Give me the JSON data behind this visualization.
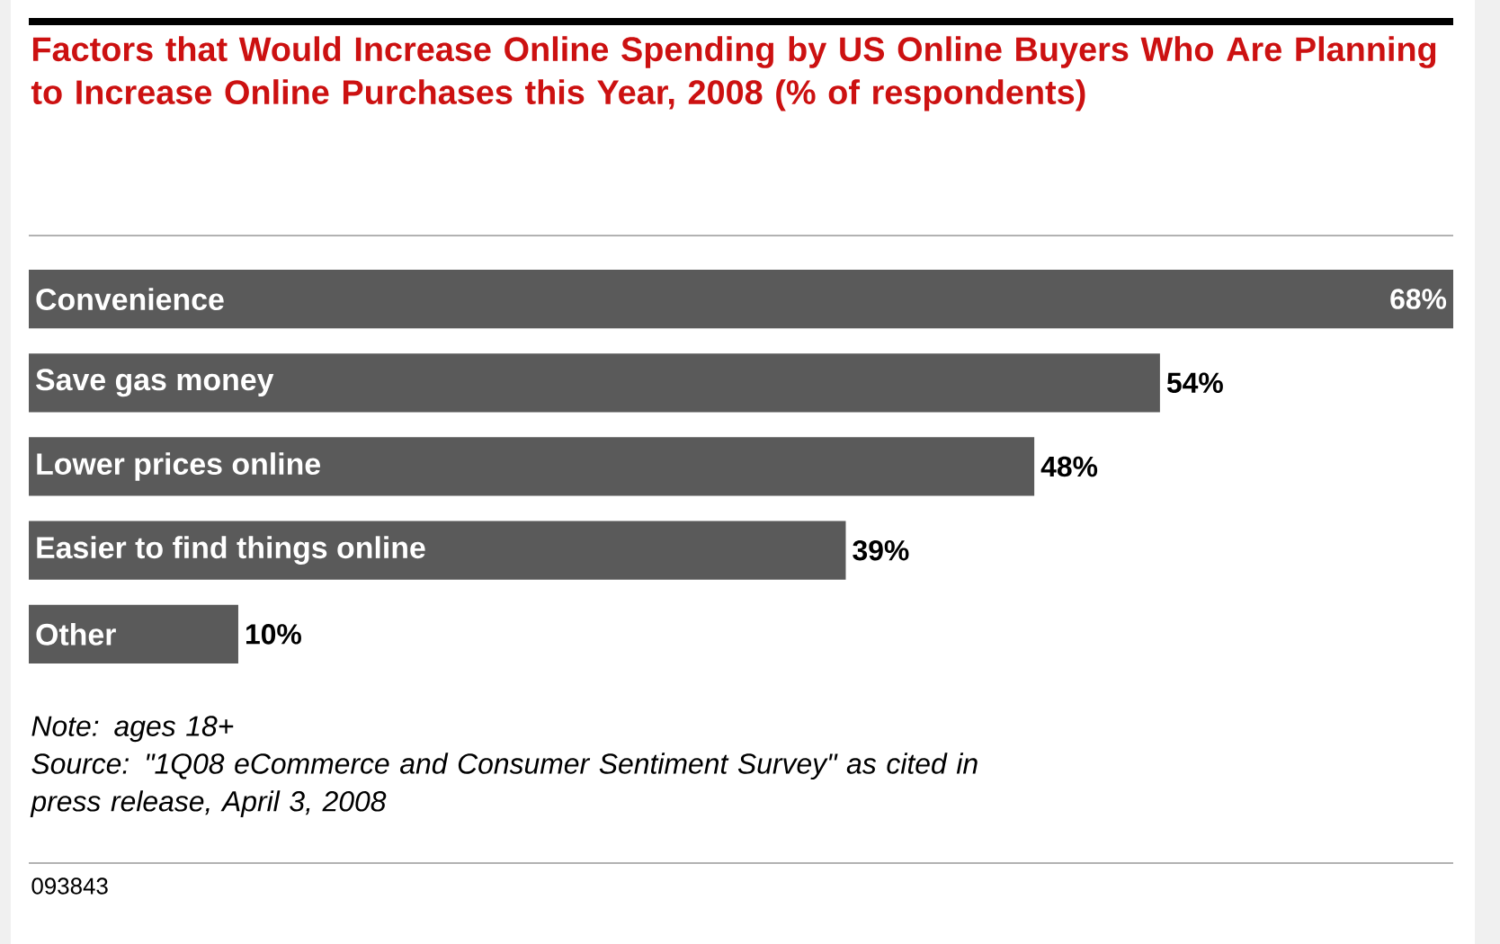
{
  "chart_data": {
    "type": "bar",
    "orientation": "horizontal",
    "title": "Factors that Would Increase Online Spending by US Online Buyers Who Are Planning to Increase Online Purchases this Year, 2008 (% of respondents)",
    "categories": [
      "Convenience",
      "Save gas money",
      "Lower prices online",
      "Easier to find things online",
      "Other"
    ],
    "values": [
      68,
      54,
      48,
      39,
      10
    ],
    "value_labels": [
      "68%",
      "54%",
      "48%",
      "39%",
      "10%"
    ],
    "color": "#5a5a5a",
    "annotations": [
      "Note: ages 18+",
      "Source: \"1Q08 eCommerce and Consumer Sentiment Survey\" as cited in press release, April 3, 2008",
      "093843"
    ]
  }
}
